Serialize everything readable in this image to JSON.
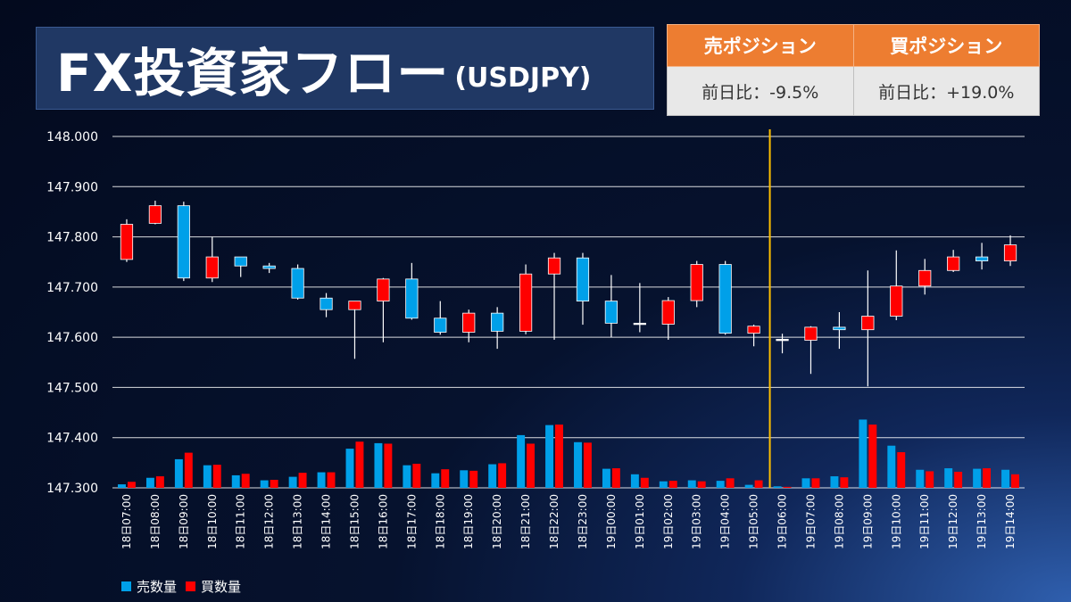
{
  "header": {
    "title": "FX投資家フロー",
    "subtitle": "(USDJPY)"
  },
  "positions": {
    "sell_label": "売ポジション",
    "buy_label": "買ポジション",
    "sell_change": "前日比：-9.5%",
    "buy_change": "前日比：+19.0%"
  },
  "colors": {
    "sell": "#00a0e9",
    "buy": "#ff0000",
    "marker_line": "#ffc000",
    "gridline": "#ffffff",
    "orange_header": "#ed7d31"
  },
  "chart_data": {
    "type": "candlestick+bar",
    "y_ticks": [
      "148.000",
      "147.900",
      "147.800",
      "147.700",
      "147.600",
      "147.500",
      "147.400",
      "147.300"
    ],
    "ylim": [
      147.3,
      148.0
    ],
    "grid": true,
    "legend_position": "bottom-left",
    "legend": [
      "売数量",
      "買数量"
    ],
    "current_time_marker": "19日06:00",
    "categories": [
      "18日07:00",
      "18日08:00",
      "18日09:00",
      "18日10:00",
      "18日11:00",
      "18日12:00",
      "18日13:00",
      "18日14:00",
      "18日15:00",
      "18日16:00",
      "18日17:00",
      "18日18:00",
      "18日19:00",
      "18日20:00",
      "18日21:00",
      "18日22:00",
      "18日23:00",
      "19日00:00",
      "19日01:00",
      "19日02:00",
      "19日03:00",
      "19日04:00",
      "19日05:00",
      "19日06:00",
      "19日07:00",
      "19日08:00",
      "19日09:00",
      "19日10:00",
      "19日11:00",
      "19日12:00",
      "19日13:00",
      "19日14:00"
    ],
    "candles": [
      {
        "o": 147.755,
        "h": 147.835,
        "l": 147.75,
        "c": 147.825
      },
      {
        "o": 147.827,
        "h": 147.872,
        "l": 147.825,
        "c": 147.862
      },
      {
        "o": 147.862,
        "h": 147.87,
        "l": 147.712,
        "c": 147.718
      },
      {
        "o": 147.718,
        "h": 147.8,
        "l": 147.71,
        "c": 147.76
      },
      {
        "o": 147.76,
        "h": 147.76,
        "l": 147.72,
        "c": 147.742
      },
      {
        "o": 147.742,
        "h": 147.748,
        "l": 147.728,
        "c": 147.737
      },
      {
        "o": 147.737,
        "h": 147.745,
        "l": 147.675,
        "c": 147.678
      },
      {
        "o": 147.678,
        "h": 147.688,
        "l": 147.64,
        "c": 147.655
      },
      {
        "o": 147.655,
        "h": 147.67,
        "l": 147.557,
        "c": 147.672
      },
      {
        "o": 147.672,
        "h": 147.718,
        "l": 147.59,
        "c": 147.716
      },
      {
        "o": 147.716,
        "h": 147.748,
        "l": 147.635,
        "c": 147.638
      },
      {
        "o": 147.638,
        "h": 147.672,
        "l": 147.605,
        "c": 147.61
      },
      {
        "o": 147.61,
        "h": 147.655,
        "l": 147.59,
        "c": 147.648
      },
      {
        "o": 147.648,
        "h": 147.66,
        "l": 147.577,
        "c": 147.612
      },
      {
        "o": 147.612,
        "h": 147.745,
        "l": 147.606,
        "c": 147.726
      },
      {
        "o": 147.726,
        "h": 147.768,
        "l": 147.595,
        "c": 147.758
      },
      {
        "o": 147.758,
        "h": 147.768,
        "l": 147.625,
        "c": 147.672
      },
      {
        "o": 147.672,
        "h": 147.724,
        "l": 147.6,
        "c": 147.628
      },
      {
        "o": 147.628,
        "h": 147.708,
        "l": 147.61,
        "c": 147.626
      },
      {
        "o": 147.626,
        "h": 147.68,
        "l": 147.595,
        "c": 147.673
      },
      {
        "o": 147.673,
        "h": 147.752,
        "l": 147.66,
        "c": 147.745
      },
      {
        "o": 147.745,
        "h": 147.752,
        "l": 147.605,
        "c": 147.608
      },
      {
        "o": 147.608,
        "h": 147.625,
        "l": 147.582,
        "c": 147.622
      },
      {
        "o": 147.596,
        "h": 147.607,
        "l": 147.568,
        "c": 147.594
      },
      {
        "o": 147.594,
        "h": 147.622,
        "l": 147.527,
        "c": 147.62
      },
      {
        "o": 147.62,
        "h": 147.65,
        "l": 147.577,
        "c": 147.615
      },
      {
        "o": 147.615,
        "h": 147.733,
        "l": 147.502,
        "c": 147.642
      },
      {
        "o": 147.642,
        "h": 147.773,
        "l": 147.634,
        "c": 147.702
      },
      {
        "o": 147.702,
        "h": 147.756,
        "l": 147.685,
        "c": 147.733
      },
      {
        "o": 147.733,
        "h": 147.774,
        "l": 147.73,
        "c": 147.76
      },
      {
        "o": 147.76,
        "h": 147.788,
        "l": 147.735,
        "c": 147.752
      },
      {
        "o": 147.752,
        "h": 147.803,
        "l": 147.742,
        "c": 147.784
      }
    ],
    "sell_volume": [
      147.307,
      147.32,
      147.357,
      147.345,
      147.325,
      147.315,
      147.322,
      147.331,
      147.378,
      147.389,
      147.345,
      147.329,
      147.335,
      147.347,
      147.405,
      147.425,
      147.391,
      147.338,
      147.327,
      147.313,
      147.315,
      147.314,
      147.306,
      147.303,
      147.319,
      147.323,
      147.436,
      147.384,
      147.336,
      147.339,
      147.338,
      147.336
    ],
    "buy_volume": [
      147.312,
      147.323,
      147.37,
      147.346,
      147.328,
      147.316,
      147.33,
      147.331,
      147.392,
      147.388,
      147.348,
      147.337,
      147.334,
      147.349,
      147.388,
      147.426,
      147.39,
      147.339,
      147.32,
      147.314,
      147.313,
      147.319,
      147.315,
      147.302,
      147.319,
      147.321,
      147.426,
      147.371,
      147.333,
      147.332,
      147.339,
      147.327
    ]
  }
}
